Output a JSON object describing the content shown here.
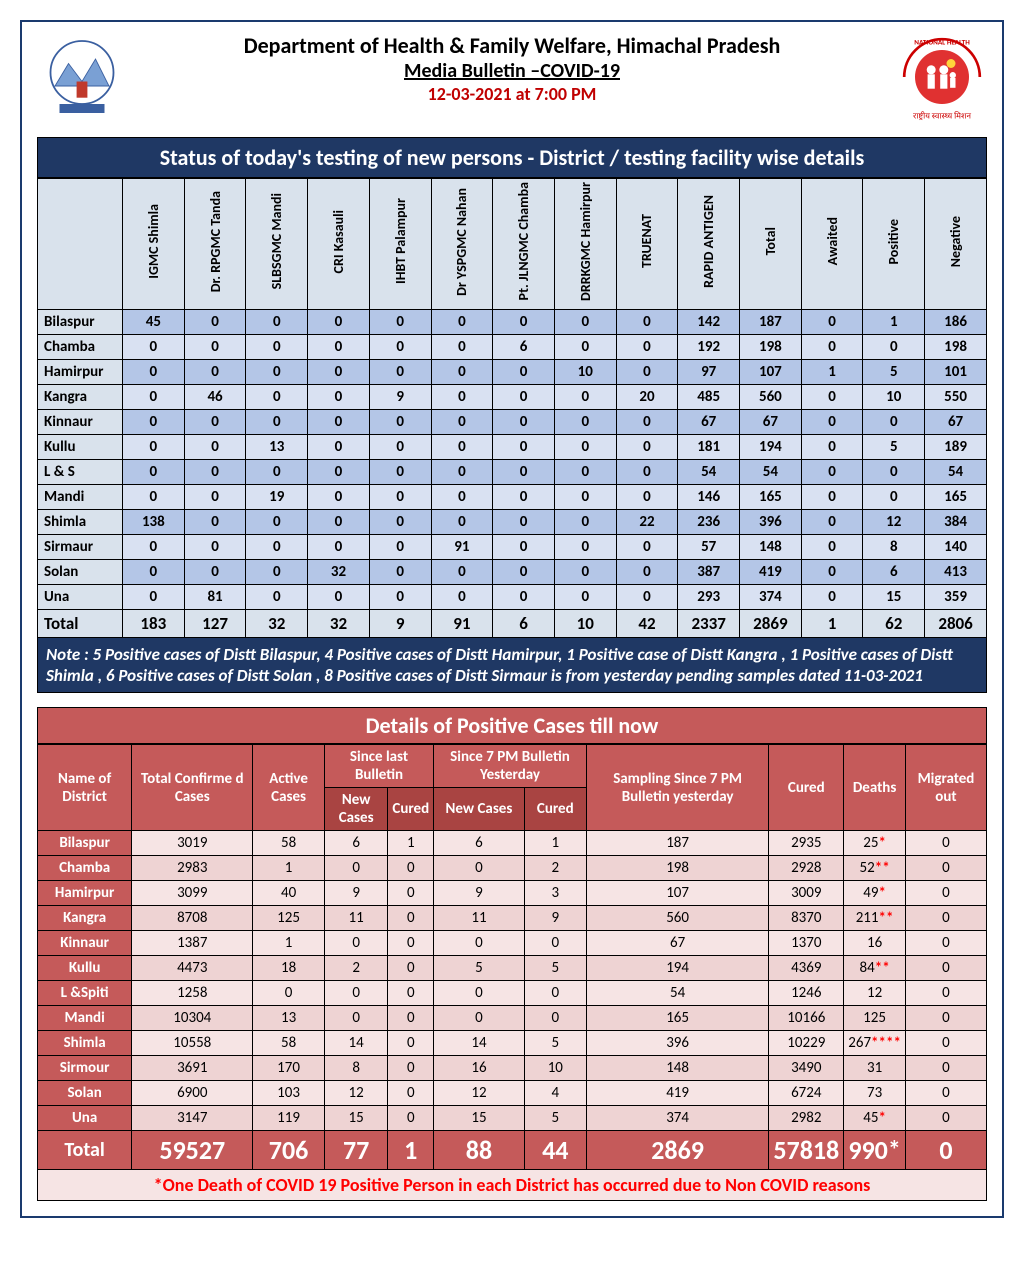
{
  "header": {
    "dept": "Department of Health & Family Welfare, Himachal Pradesh",
    "bulletin": "Media Bulletin –COVID-19",
    "date": "12-03-2021 at 7:00 PM",
    "date_color": "#c00000"
  },
  "colors": {
    "navy": "#1f3864",
    "red_header": "#c55a5a",
    "red_dark": "#a94442",
    "pink_light": "#f6e4e4",
    "pink_alt": "#eed3d3",
    "asterisk": "#ff0000"
  },
  "table1": {
    "title": "Status of today's testing of new persons - District / testing facility wise details",
    "columns": [
      "IGMC Shimla",
      "Dr. RPGMC Tanda",
      "SLBSGMC Mandi",
      "CRI Kasauli",
      "IHBT Palampur",
      "Dr YSPGMC Nahan",
      "Pt. JLNGMC Chamba",
      "DRRKGMC Hamirpur",
      "TRUENAT",
      "RAPID ANTIGEN",
      "Total",
      "Awaited",
      "Positive",
      "Negative"
    ],
    "rows": [
      {
        "d": "Bilaspur",
        "v": [
          45,
          0,
          0,
          0,
          0,
          0,
          0,
          0,
          0,
          142,
          187,
          0,
          1,
          186
        ]
      },
      {
        "d": "Chamba",
        "v": [
          0,
          0,
          0,
          0,
          0,
          0,
          6,
          0,
          0,
          192,
          198,
          0,
          0,
          198
        ]
      },
      {
        "d": "Hamirpur",
        "v": [
          0,
          0,
          0,
          0,
          0,
          0,
          0,
          10,
          0,
          97,
          107,
          1,
          5,
          101
        ]
      },
      {
        "d": "Kangra",
        "v": [
          0,
          46,
          0,
          0,
          9,
          0,
          0,
          0,
          20,
          485,
          560,
          0,
          10,
          550
        ]
      },
      {
        "d": "Kinnaur",
        "v": [
          0,
          0,
          0,
          0,
          0,
          0,
          0,
          0,
          0,
          67,
          67,
          0,
          0,
          67
        ]
      },
      {
        "d": "Kullu",
        "v": [
          0,
          0,
          13,
          0,
          0,
          0,
          0,
          0,
          0,
          181,
          194,
          0,
          5,
          189
        ]
      },
      {
        "d": "L & S",
        "v": [
          0,
          0,
          0,
          0,
          0,
          0,
          0,
          0,
          0,
          54,
          54,
          0,
          0,
          54
        ]
      },
      {
        "d": "Mandi",
        "v": [
          0,
          0,
          19,
          0,
          0,
          0,
          0,
          0,
          0,
          146,
          165,
          0,
          0,
          165
        ]
      },
      {
        "d": "Shimla",
        "v": [
          138,
          0,
          0,
          0,
          0,
          0,
          0,
          0,
          22,
          236,
          396,
          0,
          12,
          384
        ]
      },
      {
        "d": "Sirmaur",
        "v": [
          0,
          0,
          0,
          0,
          0,
          91,
          0,
          0,
          0,
          57,
          148,
          0,
          8,
          140
        ]
      },
      {
        "d": "Solan",
        "v": [
          0,
          0,
          0,
          32,
          0,
          0,
          0,
          0,
          0,
          387,
          419,
          0,
          6,
          413
        ]
      },
      {
        "d": "Una",
        "v": [
          0,
          81,
          0,
          0,
          0,
          0,
          0,
          0,
          0,
          293,
          374,
          0,
          15,
          359
        ]
      }
    ],
    "total": {
      "d": "Total",
      "v": [
        183,
        127,
        32,
        32,
        9,
        91,
        6,
        10,
        42,
        2337,
        2869,
        1,
        62,
        2806
      ]
    },
    "note": "Note : 5  Positive cases of Distt Bilaspur, 4  Positive cases of Distt  Hamirpur, 1  Positive case of Distt Kangra , 1  Positive cases of Distt  Shimla , 6  Positive cases of Distt  Solan , 8 Positive cases of Distt Sirmaur is from yesterday pending samples dated 11-03-2021"
  },
  "table2": {
    "title": "Details of Positive Cases till now",
    "h_name": "Name of District",
    "h_conf": "Total Confirme d Cases",
    "h_active": "Active Cases",
    "h_since_last": "Since last Bulletin",
    "h_since_7pm": "Since 7 PM Bulletin Yesterday",
    "h_sampling": "Sampling Since 7 PM Bulletin yesterday",
    "h_cured": "Cured",
    "h_deaths": "Deaths",
    "h_migrated": "Migrated out",
    "h_new": "New Cases",
    "h_cured_sub": "Cured",
    "rows": [
      {
        "d": "Bilaspur",
        "conf": 3019,
        "active": 58,
        "nc1": 6,
        "cu1": 1,
        "nc2": 6,
        "cu2": 1,
        "samp": 187,
        "cured": 2935,
        "deaths": "25",
        "ast": "*",
        "mig": 0
      },
      {
        "d": "Chamba",
        "conf": 2983,
        "active": 1,
        "nc1": 0,
        "cu1": 0,
        "nc2": 0,
        "cu2": 2,
        "samp": 198,
        "cured": 2928,
        "deaths": "52",
        "ast": "**",
        "mig": 0
      },
      {
        "d": "Hamirpur",
        "conf": 3099,
        "active": 40,
        "nc1": 9,
        "cu1": 0,
        "nc2": 9,
        "cu2": 3,
        "samp": 107,
        "cured": 3009,
        "deaths": "49",
        "ast": "*",
        "mig": 0
      },
      {
        "d": "Kangra",
        "conf": 8708,
        "active": 125,
        "nc1": 11,
        "cu1": 0,
        "nc2": 11,
        "cu2": 9,
        "samp": 560,
        "cured": 8370,
        "deaths": "211",
        "ast": "**",
        "mig": 0
      },
      {
        "d": "Kinnaur",
        "conf": 1387,
        "active": 1,
        "nc1": 0,
        "cu1": 0,
        "nc2": 0,
        "cu2": 0,
        "samp": 67,
        "cured": 1370,
        "deaths": "16",
        "ast": "",
        "mig": 0
      },
      {
        "d": "Kullu",
        "conf": 4473,
        "active": 18,
        "nc1": 2,
        "cu1": 0,
        "nc2": 5,
        "cu2": 5,
        "samp": 194,
        "cured": 4369,
        "deaths": "84",
        "ast": "**",
        "mig": 0
      },
      {
        "d": "L &Spiti",
        "conf": 1258,
        "active": 0,
        "nc1": 0,
        "cu1": 0,
        "nc2": 0,
        "cu2": 0,
        "samp": 54,
        "cured": 1246,
        "deaths": "12",
        "ast": "",
        "mig": 0
      },
      {
        "d": "Mandi",
        "conf": 10304,
        "active": 13,
        "nc1": 0,
        "cu1": 0,
        "nc2": 0,
        "cu2": 0,
        "samp": 165,
        "cured": 10166,
        "deaths": "125",
        "ast": "",
        "mig": 0
      },
      {
        "d": "Shimla",
        "conf": 10558,
        "active": 58,
        "nc1": 14,
        "cu1": 0,
        "nc2": 14,
        "cu2": 5,
        "samp": 396,
        "cured": 10229,
        "deaths": "267",
        "ast": "****",
        "mig": 0
      },
      {
        "d": "Sirmour",
        "conf": 3691,
        "active": 170,
        "nc1": 8,
        "cu1": 0,
        "nc2": 16,
        "cu2": 10,
        "samp": 148,
        "cured": 3490,
        "deaths": "31",
        "ast": "",
        "mig": 0
      },
      {
        "d": "Solan",
        "conf": 6900,
        "active": 103,
        "nc1": 12,
        "cu1": 0,
        "nc2": 12,
        "cu2": 4,
        "samp": 419,
        "cured": 6724,
        "deaths": "73",
        "ast": "",
        "mig": 0
      },
      {
        "d": "Una",
        "conf": 3147,
        "active": 119,
        "nc1": 15,
        "cu1": 0,
        "nc2": 15,
        "cu2": 5,
        "samp": 374,
        "cured": 2982,
        "deaths": "45",
        "ast": "*",
        "mig": 0
      }
    ],
    "total": {
      "d": "Total",
      "conf": "59527",
      "active": "706",
      "nc1": "77",
      "cu1": "1",
      "nc2": "88",
      "cu2": "44",
      "samp": "2869",
      "cured": "57818",
      "deaths": "990",
      "ast": "*",
      "mig": "0"
    },
    "footnote": "*One Death of COVID 19 Positive Person in each District has occurred due to Non COVID reasons"
  }
}
